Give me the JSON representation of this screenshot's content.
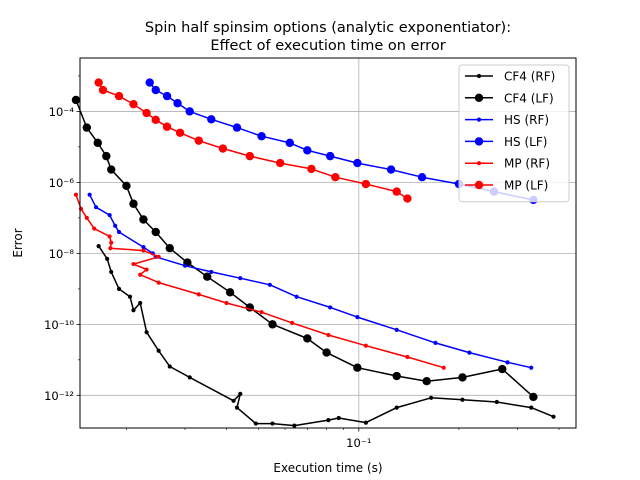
{
  "chart_data": {
    "type": "line",
    "title_line1": "Spin half spinsim options (analytic exponentiator):",
    "title_line2": "Effect of execution time on error",
    "xlabel": "Execution time (s)",
    "ylabel": "Error",
    "xscale": "log",
    "yscale": "log",
    "xlim": [
      0.0145,
      0.45
    ],
    "ylim": [
      1.2e-13,
      0.0032
    ],
    "grid": "major",
    "legend_position": "top-right",
    "x_ticks": [
      {
        "value": 0.1,
        "label": "10⁻¹"
      }
    ],
    "y_ticks": [
      {
        "value": 1e-12,
        "label": "10⁻¹²"
      },
      {
        "value": 1e-10,
        "label": "10⁻¹⁰"
      },
      {
        "value": 1e-08,
        "label": "10⁻⁸"
      },
      {
        "value": 1e-06,
        "label": "10⁻⁶"
      },
      {
        "value": 0.0001,
        "label": "10⁻⁴"
      }
    ],
    "series": [
      {
        "name": "CF4 (RF)",
        "color": "#000000",
        "marker": "small",
        "points": [
          [
            0.0165,
            1.6e-08
          ],
          [
            0.0175,
            7e-09
          ],
          [
            0.018,
            3e-09
          ],
          [
            0.019,
            1e-09
          ],
          [
            0.0205,
            6e-10
          ],
          [
            0.021,
            2.5e-10
          ],
          [
            0.022,
            4e-10
          ],
          [
            0.023,
            6e-11
          ],
          [
            0.025,
            1.8e-11
          ],
          [
            0.027,
            6.5e-12
          ],
          [
            0.031,
            3.2e-12
          ],
          [
            0.042,
            7e-13
          ],
          [
            0.044,
            1.1e-12
          ],
          [
            0.043,
            4.5e-13
          ],
          [
            0.049,
            1.6e-13
          ],
          [
            0.055,
            1.6e-13
          ],
          [
            0.064,
            1.4e-13
          ],
          [
            0.081,
            2e-13
          ],
          [
            0.087,
            2.3e-13
          ],
          [
            0.105,
            1.7e-13
          ],
          [
            0.13,
            4.5e-13
          ],
          [
            0.165,
            8.5e-13
          ],
          [
            0.205,
            7.5e-13
          ],
          [
            0.26,
            6.5e-13
          ],
          [
            0.33,
            4.5e-13
          ],
          [
            0.385,
            2.5e-13
          ]
        ]
      },
      {
        "name": "CF4 (LF)",
        "color": "#000000",
        "marker": "large",
        "points": [
          [
            0.0141,
            0.00021
          ],
          [
            0.0152,
            3.5e-05
          ],
          [
            0.0164,
            1.3e-05
          ],
          [
            0.0174,
            5.5e-06
          ],
          [
            0.018,
            2.3e-06
          ],
          [
            0.02,
            8e-07
          ],
          [
            0.021,
            2.5e-07
          ],
          [
            0.0225,
            9e-08
          ],
          [
            0.0245,
            4e-08
          ],
          [
            0.027,
            1.4e-08
          ],
          [
            0.0305,
            5.5e-09
          ],
          [
            0.035,
            2.2e-09
          ],
          [
            0.041,
            8e-10
          ],
          [
            0.047,
            3e-10
          ],
          [
            0.055,
            1e-10
          ],
          [
            0.07,
            4e-11
          ],
          [
            0.08,
            1.6e-11
          ],
          [
            0.099,
            6e-12
          ],
          [
            0.13,
            3.5e-12
          ],
          [
            0.16,
            2.5e-12
          ],
          [
            0.205,
            3.2e-12
          ],
          [
            0.27,
            5.5e-12
          ],
          [
            0.335,
            9e-13
          ]
        ]
      },
      {
        "name": "HS (RF)",
        "color": "#0000ff",
        "marker": "small",
        "points": [
          [
            0.0155,
            4.5e-07
          ],
          [
            0.0162,
            2e-07
          ],
          [
            0.0178,
            1.2e-07
          ],
          [
            0.0185,
            6e-08
          ],
          [
            0.019,
            4e-08
          ],
          [
            0.0225,
            1.5e-08
          ],
          [
            0.024,
            1e-08
          ],
          [
            0.0245,
            8e-09
          ],
          [
            0.03,
            4.5e-09
          ],
          [
            0.036,
            3e-09
          ],
          [
            0.044,
            2e-09
          ],
          [
            0.054,
            1.3e-09
          ],
          [
            0.065,
            6e-10
          ],
          [
            0.082,
            3e-10
          ],
          [
            0.099,
            1.6e-10
          ],
          [
            0.13,
            7e-11
          ],
          [
            0.17,
            3e-11
          ],
          [
            0.215,
            1.6e-11
          ],
          [
            0.28,
            8.5e-12
          ],
          [
            0.33,
            6e-12
          ]
        ]
      },
      {
        "name": "HS (LF)",
        "color": "#0000ff",
        "marker": "large",
        "points": [
          [
            0.0235,
            0.00065
          ],
          [
            0.0245,
            0.0004
          ],
          [
            0.0265,
            0.00027
          ],
          [
            0.0285,
            0.00017
          ],
          [
            0.031,
            0.0001
          ],
          [
            0.036,
            6e-05
          ],
          [
            0.043,
            3.5e-05
          ],
          [
            0.051,
            2e-05
          ],
          [
            0.062,
            1.3e-05
          ],
          [
            0.07,
            8e-06
          ],
          [
            0.082,
            5.5e-06
          ],
          [
            0.099,
            3.5e-06
          ],
          [
            0.125,
            2.3e-06
          ],
          [
            0.155,
            1.4e-06
          ],
          [
            0.2,
            9e-07
          ],
          [
            0.255,
            5.5e-07
          ],
          [
            0.335,
            3.2e-07
          ]
        ]
      },
      {
        "name": "MP (RF)",
        "color": "#ff0000",
        "marker": "small",
        "points": [
          [
            0.0141,
            4.5e-07
          ],
          [
            0.0146,
            1.8e-07
          ],
          [
            0.0152,
            1e-07
          ],
          [
            0.016,
            5e-08
          ],
          [
            0.0178,
            3e-08
          ],
          [
            0.018,
            2e-08
          ],
          [
            0.0179,
            1.4e-08
          ],
          [
            0.0225,
            1.2e-08
          ],
          [
            0.025,
            8e-09
          ],
          [
            0.021,
            5e-09
          ],
          [
            0.023,
            3.5e-09
          ],
          [
            0.022,
            2.5e-09
          ],
          [
            0.025,
            1.5e-09
          ],
          [
            0.033,
            7e-10
          ],
          [
            0.04,
            4e-10
          ],
          [
            0.051,
            2.2e-10
          ],
          [
            0.063,
            1.1e-10
          ],
          [
            0.081,
            5e-11
          ],
          [
            0.105,
            2.5e-11
          ],
          [
            0.14,
            1.2e-11
          ],
          [
            0.18,
            6e-12
          ]
        ]
      },
      {
        "name": "MP (LF)",
        "color": "#ff0000",
        "marker": "large",
        "points": [
          [
            0.0165,
            0.00065
          ],
          [
            0.017,
            0.0004
          ],
          [
            0.019,
            0.00027
          ],
          [
            0.021,
            0.00016
          ],
          [
            0.023,
            9e-05
          ],
          [
            0.0245,
            5.8e-05
          ],
          [
            0.0265,
            3.7e-05
          ],
          [
            0.029,
            2.5e-05
          ],
          [
            0.033,
            1.5e-05
          ],
          [
            0.039,
            9e-06
          ],
          [
            0.047,
            5.5e-06
          ],
          [
            0.058,
            3.5e-06
          ],
          [
            0.072,
            2.4e-06
          ],
          [
            0.085,
            1.4e-06
          ],
          [
            0.105,
            9e-07
          ],
          [
            0.13,
            5.5e-07
          ],
          [
            0.14,
            3.5e-07
          ]
        ]
      }
    ]
  }
}
